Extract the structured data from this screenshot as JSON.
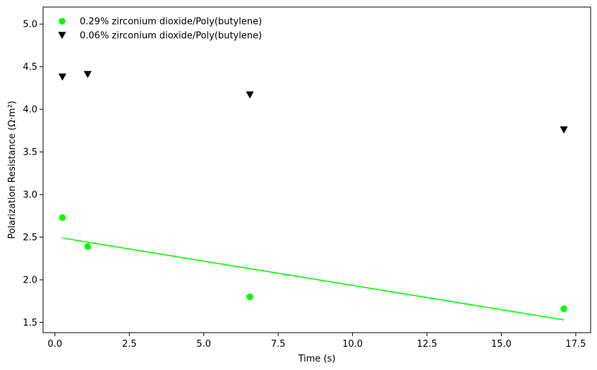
{
  "chart_data": {
    "type": "scatter",
    "title": "",
    "xlabel": "Time (s)",
    "ylabel": "Polarization Resistance (Ω·m²)",
    "xlim": [
      -0.4,
      18.0
    ],
    "ylim": [
      1.38,
      5.2
    ],
    "xticks": [
      0.0,
      2.5,
      5.0,
      7.5,
      10.0,
      12.5,
      15.0,
      17.5
    ],
    "xtick_labels": [
      "0.0",
      "2.5",
      "5.0",
      "7.5",
      "10.0",
      "12.5",
      "15.0",
      "17.5"
    ],
    "yticks": [
      1.5,
      2.0,
      2.5,
      3.0,
      3.5,
      4.0,
      4.5,
      5.0
    ],
    "ytick_labels": [
      "1.5",
      "2.0",
      "2.5",
      "3.0",
      "3.5",
      "4.0",
      "4.5",
      "5.0"
    ],
    "grid": false,
    "legend_position": "top-left",
    "series": [
      {
        "name": "0.29% zirconium dioxide/Poly(butylene)",
        "marker": "circle",
        "color": "#00ff00",
        "x": [
          0.25,
          1.1,
          6.55,
          17.1
        ],
        "y": [
          2.73,
          2.39,
          1.8,
          1.66
        ]
      },
      {
        "name": "0.06% zirconium dioxide/Poly(butylene)",
        "marker": "triangle-down",
        "color": "#000000",
        "x": [
          0.25,
          1.1,
          6.55,
          17.1
        ],
        "y": [
          4.38,
          4.41,
          4.17,
          3.76
        ]
      }
    ],
    "fit_line": {
      "color": "#00ff00",
      "x": [
        0.25,
        17.1
      ],
      "y": [
        2.49,
        1.53
      ]
    }
  }
}
